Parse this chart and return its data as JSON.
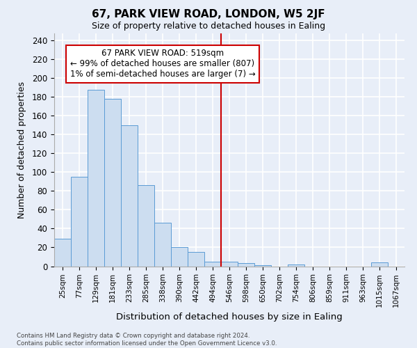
{
  "title1": "67, PARK VIEW ROAD, LONDON, W5 2JF",
  "title2": "Size of property relative to detached houses in Ealing",
  "xlabel": "Distribution of detached houses by size in Ealing",
  "ylabel": "Number of detached properties",
  "bar_labels": [
    "25sqm",
    "77sqm",
    "129sqm",
    "181sqm",
    "233sqm",
    "285sqm",
    "338sqm",
    "390sqm",
    "442sqm",
    "494sqm",
    "546sqm",
    "598sqm",
    "650sqm",
    "702sqm",
    "754sqm",
    "806sqm",
    "859sqm",
    "911sqm",
    "963sqm",
    "1015sqm",
    "1067sqm"
  ],
  "bar_values": [
    29,
    95,
    188,
    178,
    150,
    86,
    46,
    20,
    15,
    5,
    5,
    3,
    1,
    0,
    2,
    0,
    0,
    0,
    0,
    4,
    0
  ],
  "bar_color": "#ccddf0",
  "bar_edge_color": "#5b9bd5",
  "vline_x": 9.5,
  "vline_color": "#cc0000",
  "annotation_text": "67 PARK VIEW ROAD: 519sqm\n← 99% of detached houses are smaller (807)\n1% of semi-detached houses are larger (7) →",
  "annotation_box_color": "white",
  "annotation_box_edge_color": "#cc0000",
  "ylim": [
    0,
    248
  ],
  "yticks": [
    0,
    20,
    40,
    60,
    80,
    100,
    120,
    140,
    160,
    180,
    200,
    220,
    240
  ],
  "footer": "Contains HM Land Registry data © Crown copyright and database right 2024.\nContains public sector information licensed under the Open Government Licence v3.0.",
  "background_color": "#e8eef8",
  "plot_bg_color": "#e8eef8",
  "grid_color": "white"
}
